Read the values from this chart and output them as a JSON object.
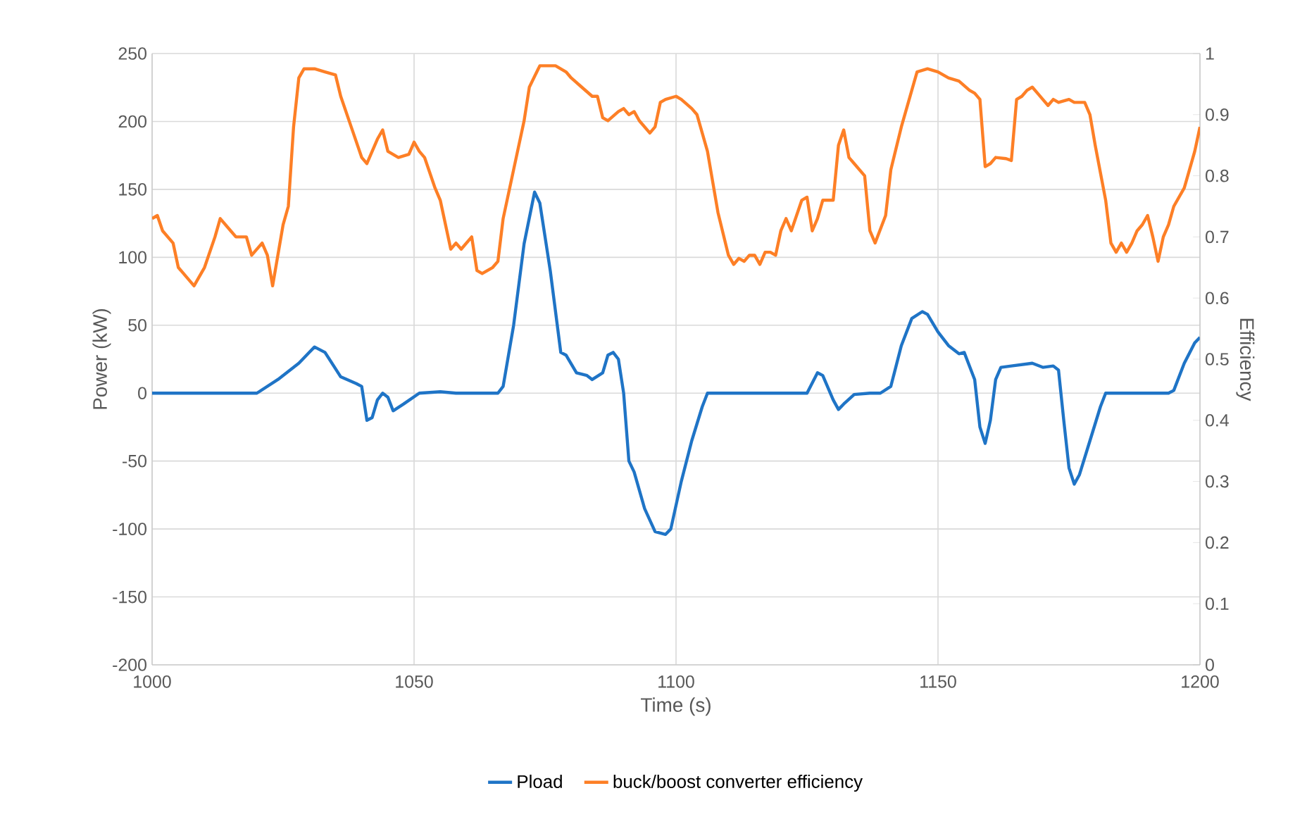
{
  "chart_data": {
    "type": "line",
    "xlabel": "Time (s)",
    "ylabel": "Power (kW)",
    "y2label": "Efficiency",
    "xlim": [
      1000,
      1200
    ],
    "xticks": [
      1000,
      1050,
      1100,
      1150,
      1200
    ],
    "ylim": [
      -200,
      250
    ],
    "yticks": [
      -200,
      -150,
      -100,
      -50,
      0,
      50,
      100,
      150,
      200,
      250
    ],
    "y2lim": [
      0,
      1
    ],
    "y2ticks": [
      0,
      0.1,
      0.2,
      0.3,
      0.4,
      0.5,
      0.6,
      0.7,
      0.8,
      0.9,
      1
    ],
    "grid": true,
    "legend": "bottom",
    "series": [
      {
        "name": "Pload",
        "color": "#1f74c6",
        "x": [
          1000,
          1020,
          1024,
          1028,
          1030,
          1031,
          1033,
          1036,
          1039,
          1040,
          1041,
          1042,
          1043,
          1044,
          1045,
          1046,
          1048,
          1051,
          1055,
          1058,
          1066,
          1067,
          1069,
          1071,
          1073,
          1074,
          1076,
          1078,
          1079,
          1081,
          1083,
          1084,
          1086,
          1087,
          1088,
          1089,
          1090,
          1091,
          1092,
          1094,
          1096,
          1098,
          1099,
          1101,
          1103,
          1105,
          1106,
          1108,
          1125,
          1127,
          1128,
          1130,
          1131,
          1132,
          1134,
          1137,
          1139,
          1141,
          1143,
          1145,
          1147,
          1148,
          1150,
          1152,
          1154,
          1155,
          1157,
          1158,
          1159,
          1160,
          1161,
          1162,
          1164,
          1168,
          1170,
          1172,
          1173,
          1174,
          1175,
          1176,
          1177,
          1179,
          1181,
          1182,
          1184,
          1194,
          1195,
          1197,
          1199,
          1200
        ],
        "values": [
          0,
          0,
          10,
          22,
          30,
          34,
          30,
          12,
          7,
          5,
          -20,
          -18,
          -5,
          0,
          -3,
          -13,
          -8,
          0,
          1,
          0,
          0,
          5,
          50,
          110,
          148,
          140,
          90,
          30,
          28,
          15,
          13,
          10,
          15,
          28,
          30,
          25,
          0,
          -50,
          -58,
          -85,
          -102,
          -104,
          -100,
          -65,
          -35,
          -10,
          0,
          0,
          0,
          15,
          13,
          -5,
          -12,
          -8,
          -1,
          0,
          0,
          5,
          35,
          55,
          60,
          58,
          45,
          35,
          29,
          30,
          10,
          -25,
          -37,
          -20,
          10,
          19,
          20,
          22,
          19,
          20,
          17,
          -20,
          -55,
          -67,
          -60,
          -35,
          -10,
          0,
          0,
          0,
          2,
          22,
          37,
          41
        ]
      },
      {
        "name": "buck/boost converter efficiency",
        "color": "#fd7f26",
        "axis": "y2",
        "x": [
          1000,
          1001,
          1002,
          1004,
          1005,
          1007,
          1008,
          1010,
          1012,
          1013,
          1015,
          1016,
          1018,
          1019,
          1021,
          1022,
          1023,
          1025,
          1026,
          1027,
          1028,
          1029,
          1031,
          1033,
          1035,
          1036,
          1038,
          1040,
          1041,
          1043,
          1044,
          1045,
          1047,
          1049,
          1050,
          1051,
          1052,
          1054,
          1055,
          1057,
          1058,
          1059,
          1061,
          1062,
          1063,
          1065,
          1066,
          1067,
          1069,
          1071,
          1072,
          1074,
          1077,
          1079,
          1080,
          1082,
          1084,
          1085,
          1086,
          1087,
          1089,
          1090,
          1091,
          1092,
          1093,
          1095,
          1096,
          1097,
          1098,
          1100,
          1101,
          1103,
          1104,
          1106,
          1108,
          1110,
          1111,
          1112,
          1113,
          1114,
          1115,
          1116,
          1117,
          1118,
          1119,
          1120,
          1121,
          1122,
          1123,
          1124,
          1125,
          1126,
          1127,
          1128,
          1130,
          1131,
          1132,
          1133,
          1134,
          1136,
          1137,
          1138,
          1140,
          1141,
          1143,
          1145,
          1146,
          1148,
          1150,
          1152,
          1154,
          1156,
          1157,
          1158,
          1159,
          1160,
          1161,
          1163,
          1164,
          1165,
          1166,
          1167,
          1168,
          1169,
          1170,
          1171,
          1172,
          1173,
          1175,
          1176,
          1178,
          1179,
          1180,
          1182,
          1183,
          1184,
          1185,
          1186,
          1187,
          1188,
          1189,
          1190,
          1191,
          1192,
          1193,
          1194,
          1195,
          1197,
          1199,
          1200
        ],
        "values": [
          0.73,
          0.735,
          0.71,
          0.69,
          0.65,
          0.63,
          0.62,
          0.65,
          0.7,
          0.73,
          0.71,
          0.7,
          0.7,
          0.67,
          0.69,
          0.67,
          0.62,
          0.72,
          0.75,
          0.88,
          0.96,
          0.975,
          0.975,
          0.97,
          0.965,
          0.93,
          0.88,
          0.83,
          0.82,
          0.86,
          0.875,
          0.84,
          0.83,
          0.835,
          0.855,
          0.84,
          0.83,
          0.78,
          0.76,
          0.68,
          0.69,
          0.68,
          0.7,
          0.645,
          0.64,
          0.65,
          0.66,
          0.73,
          0.81,
          0.89,
          0.945,
          0.98,
          0.98,
          0.97,
          0.96,
          0.945,
          0.93,
          0.93,
          0.895,
          0.89,
          0.905,
          0.91,
          0.9,
          0.905,
          0.89,
          0.87,
          0.88,
          0.92,
          0.925,
          0.93,
          0.925,
          0.91,
          0.9,
          0.84,
          0.74,
          0.67,
          0.655,
          0.665,
          0.66,
          0.67,
          0.67,
          0.655,
          0.675,
          0.675,
          0.67,
          0.71,
          0.73,
          0.71,
          0.735,
          0.76,
          0.765,
          0.71,
          0.73,
          0.76,
          0.76,
          0.85,
          0.875,
          0.83,
          0.82,
          0.8,
          0.71,
          0.69,
          0.735,
          0.81,
          0.88,
          0.94,
          0.97,
          0.975,
          0.97,
          0.96,
          0.955,
          0.94,
          0.935,
          0.925,
          0.815,
          0.82,
          0.83,
          0.828,
          0.825,
          0.925,
          0.93,
          0.94,
          0.945,
          0.935,
          0.925,
          0.915,
          0.925,
          0.92,
          0.925,
          0.92,
          0.92,
          0.9,
          0.85,
          0.76,
          0.69,
          0.675,
          0.69,
          0.675,
          0.69,
          0.71,
          0.72,
          0.735,
          0.7,
          0.66,
          0.7,
          0.72,
          0.75,
          0.78,
          0.84,
          0.88
        ]
      }
    ]
  }
}
